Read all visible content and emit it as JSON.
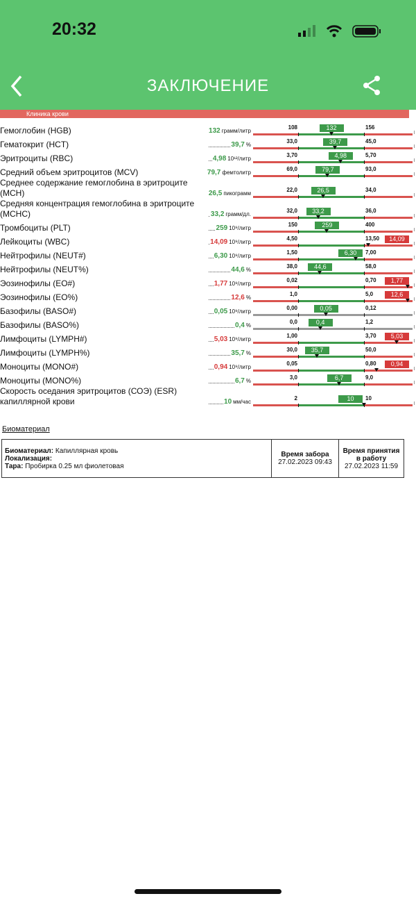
{
  "status_bar": {
    "time": "20:32"
  },
  "header": {
    "title": "ЗАКЛЮЧЕНИЕ"
  },
  "section": {
    "title": "Клиника крови"
  },
  "results": [
    {
      "name": "Гемоглобин (HGB)",
      "value": "132",
      "unit": "грамм/литр",
      "low": "108",
      "high": "156",
      "color": "#3d9a4a"
    },
    {
      "name": "Гематокрит (HCT)",
      "value": "39,7",
      "unit": "%",
      "low": "33,0",
      "high": "45,0",
      "color": "#3d9a4a"
    },
    {
      "name": "Эритроциты (RBC)",
      "value": "4,98",
      "unit": "10¹²/литр",
      "low": "3,70",
      "high": "5,70",
      "color": "#3d9a4a"
    },
    {
      "name": "Средний объем эритроцитов (MCV)",
      "value": "79,7",
      "unit": "фемтолитр",
      "low": "69,0",
      "high": "93,0",
      "color": "#3d9a4a"
    },
    {
      "name": "Среднее содержание гемоглобина в эритроците (MCH)",
      "value": "26,5",
      "unit": "пикограмм",
      "low": "22,0",
      "high": "34,0",
      "color": "#3d9a4a"
    },
    {
      "name": "Средняя концентрация гемоглобина в эритроците (MCHC)",
      "value": "33,2",
      "unit": "грамм/дл.",
      "low": "32,0",
      "high": "36,0",
      "color": "#3d9a4a"
    },
    {
      "name": "Тромбоциты (PLT)",
      "value": "259",
      "unit": "10⁹/литр",
      "low": "150",
      "high": "400",
      "color": "#3d9a4a"
    },
    {
      "name": "Лейкоциты (WBC)",
      "value": "14,09",
      "unit": "10⁹/литр",
      "low": "4,50",
      "high": "13,50",
      "color": "#d63a3a"
    },
    {
      "name": "Нейтрофилы (NEUT#)",
      "value": "6,30",
      "unit": "10⁹/литр",
      "low": "1,50",
      "high": "7,00",
      "color": "#3d9a4a"
    },
    {
      "name": "Нейтрофилы (NEUT%)",
      "value": "44,6",
      "unit": "%",
      "low": "38,0",
      "high": "58,0",
      "color": "#3d9a4a"
    },
    {
      "name": "Эозинофилы (EO#)",
      "value": "1,77",
      "unit": "10⁹/литр",
      "low": "0,02",
      "high": "0,70",
      "color": "#d63a3a"
    },
    {
      "name": "Эозинофилы (EO%)",
      "value": "12,6",
      "unit": "%",
      "low": "1,0",
      "high": "5,0",
      "color": "#d63a3a"
    },
    {
      "name": "Базофилы (BASO#)",
      "value": "0,05",
      "unit": "10⁹/литр",
      "low": "0,00",
      "high": "0,12",
      "color": "#3d9a4a",
      "track_color": "#9a9a9a"
    },
    {
      "name": "Базофилы (BASO%)",
      "value": "0,4",
      "unit": "%",
      "low": "0,0",
      "high": "1,2",
      "color": "#3d9a4a",
      "track_color": "#9a9a9a"
    },
    {
      "name": "Лимфоциты (LYMPH#)",
      "value": "5,03",
      "unit": "10⁹/литр",
      "low": "1,00",
      "high": "3,70",
      "color": "#d63a3a"
    },
    {
      "name": "Лимфоциты (LYMPH%)",
      "value": "35,7",
      "unit": "%",
      "low": "30,0",
      "high": "50,0",
      "color": "#3d9a4a"
    },
    {
      "name": "Моноциты (MONO#)",
      "value": "0,94",
      "unit": "10⁹/литр",
      "low": "0,05",
      "high": "0,80",
      "color": "#d63a3a"
    },
    {
      "name": "Моноциты (MONO%)",
      "value": "6,7",
      "unit": "%",
      "low": "3,0",
      "high": "9,0",
      "color": "#3d9a4a"
    },
    {
      "name": "Скорость оседания эритроцитов (СОЭ) (ESR) капиллярной крови",
      "value": "10",
      "unit": "мм/час",
      "low": "2",
      "high": "10",
      "color": "#3d9a4a"
    }
  ],
  "biomaterial": {
    "heading": "Биоматериал",
    "material_label": "Биоматериал:",
    "material": "Капиллярная кровь",
    "location_label": "Локализация:",
    "container_label": "Тара:",
    "container": "Пробирка 0.25 мл фиолетовая",
    "collected_label": "Время забора",
    "collected": "27.02.2023 09:43",
    "received_label": "Время принятия в работу",
    "received": "27.02.2023 11:59"
  }
}
